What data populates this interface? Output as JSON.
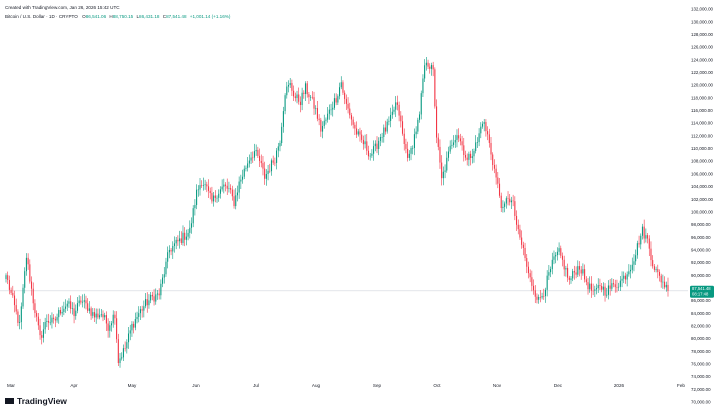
{
  "header": {
    "created_with": "Created with TradingView.com, Jan 26, 2026 15:42 UTC",
    "symbol_line": "Bitcoin / U.S. Dollar · 1D · CRYPTO",
    "ohlc": [
      {
        "key": "O",
        "value": "86,541.06"
      },
      {
        "key": "H",
        "value": "88,750.15"
      },
      {
        "key": "L",
        "value": "86,431.18"
      },
      {
        "key": "C",
        "value": "87,541.48"
      },
      {
        "key": "",
        "value": "+1,001.14 (+1.16%)"
      }
    ]
  },
  "price_badge": {
    "price": "87,541.48",
    "countdown": "08:17:48"
  },
  "brand": {
    "name": "TradingView"
  },
  "colors": {
    "up": "#089981",
    "down": "#f23645",
    "badge": "#089981",
    "axis_text": "#131722"
  },
  "chart_data": {
    "type": "candlestick",
    "title": "Bitcoin / U.S. Dollar · 1D · CRYPTO",
    "ylim": [
      70000,
      132000
    ],
    "y_ticks": [
      "132,000.00",
      "130,000.00",
      "128,000.00",
      "126,000.00",
      "124,000.00",
      "122,000.00",
      "120,000.00",
      "118,000.00",
      "116,000.00",
      "114,000.00",
      "112,000.00",
      "110,000.00",
      "108,000.00",
      "106,000.00",
      "104,000.00",
      "102,000.00",
      "100,000.00",
      "98,000.00",
      "96,000.00",
      "94,000.00",
      "92,000.00",
      "90,000.00",
      "88,000.00",
      "86,000.00",
      "84,000.00",
      "82,000.00",
      "80,000.00",
      "78,000.00",
      "76,000.00",
      "74,000.00",
      "72,000.00",
      "70,000.00"
    ],
    "x_ticks": [
      "Mar",
      "Apr",
      "May",
      "Jun",
      "Jul",
      "Aug",
      "Sep",
      "Oct",
      "Nov",
      "Dec",
      "2026",
      "Feb"
    ],
    "grid": false,
    "last_price": 87541.48,
    "path": [
      [
        0,
        90000
      ],
      [
        4,
        86000
      ],
      [
        8,
        82000
      ],
      [
        12,
        93000
      ],
      [
        16,
        86000
      ],
      [
        20,
        80000
      ],
      [
        24,
        83000
      ],
      [
        28,
        82500
      ],
      [
        32,
        84500
      ],
      [
        36,
        85500
      ],
      [
        40,
        84000
      ],
      [
        44,
        86000
      ],
      [
        48,
        85000
      ],
      [
        52,
        83500
      ],
      [
        56,
        84000
      ],
      [
        60,
        82000
      ],
      [
        64,
        84000
      ],
      [
        66,
        76500
      ],
      [
        70,
        78500
      ],
      [
        74,
        82000
      ],
      [
        78,
        84000
      ],
      [
        82,
        85500
      ],
      [
        86,
        86500
      ],
      [
        90,
        87000
      ],
      [
        93,
        90500
      ],
      [
        96,
        94000
      ],
      [
        100,
        95000
      ],
      [
        104,
        96000
      ],
      [
        108,
        97000
      ],
      [
        112,
        103000
      ],
      [
        115,
        105000
      ],
      [
        118,
        103500
      ],
      [
        121,
        101500
      ],
      [
        124,
        103000
      ],
      [
        128,
        104000
      ],
      [
        131,
        103500
      ],
      [
        134,
        101500
      ],
      [
        137,
        104500
      ],
      [
        140,
        106500
      ],
      [
        143,
        108500
      ],
      [
        146,
        109500
      ],
      [
        149,
        108000
      ],
      [
        152,
        105500
      ],
      [
        155,
        107000
      ],
      [
        158,
        108500
      ],
      [
        161,
        111500
      ],
      [
        164,
        119000
      ],
      [
        167,
        120000
      ],
      [
        170,
        118000
      ],
      [
        173,
        117500
      ],
      [
        176,
        119500
      ],
      [
        179,
        118000
      ],
      [
        182,
        116000
      ],
      [
        185,
        113000
      ],
      [
        188,
        114500
      ],
      [
        191,
        116500
      ],
      [
        194,
        118000
      ],
      [
        197,
        120500
      ],
      [
        199,
        117500
      ],
      [
        202,
        115500
      ],
      [
        205,
        113000
      ],
      [
        208,
        111500
      ],
      [
        211,
        110500
      ],
      [
        214,
        109000
      ],
      [
        217,
        110000
      ],
      [
        220,
        112000
      ],
      [
        223,
        113000
      ],
      [
        226,
        114500
      ],
      [
        229,
        117000
      ],
      [
        231,
        115500
      ],
      [
        234,
        110500
      ],
      [
        237,
        108500
      ],
      [
        240,
        112000
      ],
      [
        243,
        115000
      ],
      [
        245,
        121000
      ],
      [
        247,
        124000
      ],
      [
        249,
        123000
      ],
      [
        251,
        122000
      ],
      [
        253,
        112000
      ],
      [
        256,
        105000
      ],
      [
        259,
        108000
      ],
      [
        262,
        111000
      ],
      [
        265,
        112500
      ],
      [
        268,
        110500
      ],
      [
        271,
        108000
      ],
      [
        274,
        109500
      ],
      [
        277,
        111000
      ],
      [
        280,
        114500
      ],
      [
        283,
        112000
      ],
      [
        286,
        108000
      ],
      [
        289,
        104000
      ],
      [
        292,
        100000
      ],
      [
        295,
        102500
      ],
      [
        298,
        101000
      ],
      [
        301,
        96500
      ],
      [
        304,
        94000
      ],
      [
        307,
        90000
      ],
      [
        310,
        88000
      ],
      [
        313,
        86000
      ],
      [
        316,
        87500
      ],
      [
        319,
        90000
      ],
      [
        322,
        92500
      ],
      [
        325,
        93500
      ],
      [
        328,
        91500
      ],
      [
        331,
        89000
      ],
      [
        334,
        90500
      ],
      [
        337,
        91500
      ],
      [
        340,
        89500
      ],
      [
        343,
        88000
      ],
      [
        346,
        87000
      ],
      [
        349,
        88500
      ],
      [
        352,
        87500
      ],
      [
        355,
        88000
      ],
      [
        358,
        88500
      ],
      [
        361,
        89000
      ],
      [
        364,
        90000
      ],
      [
        367,
        91500
      ],
      [
        370,
        93500
      ],
      [
        372,
        95500
      ],
      [
        374,
        97000
      ],
      [
        377,
        95500
      ],
      [
        380,
        92000
      ],
      [
        383,
        90000
      ],
      [
        386,
        89000
      ],
      [
        389,
        87541.48
      ]
    ]
  }
}
